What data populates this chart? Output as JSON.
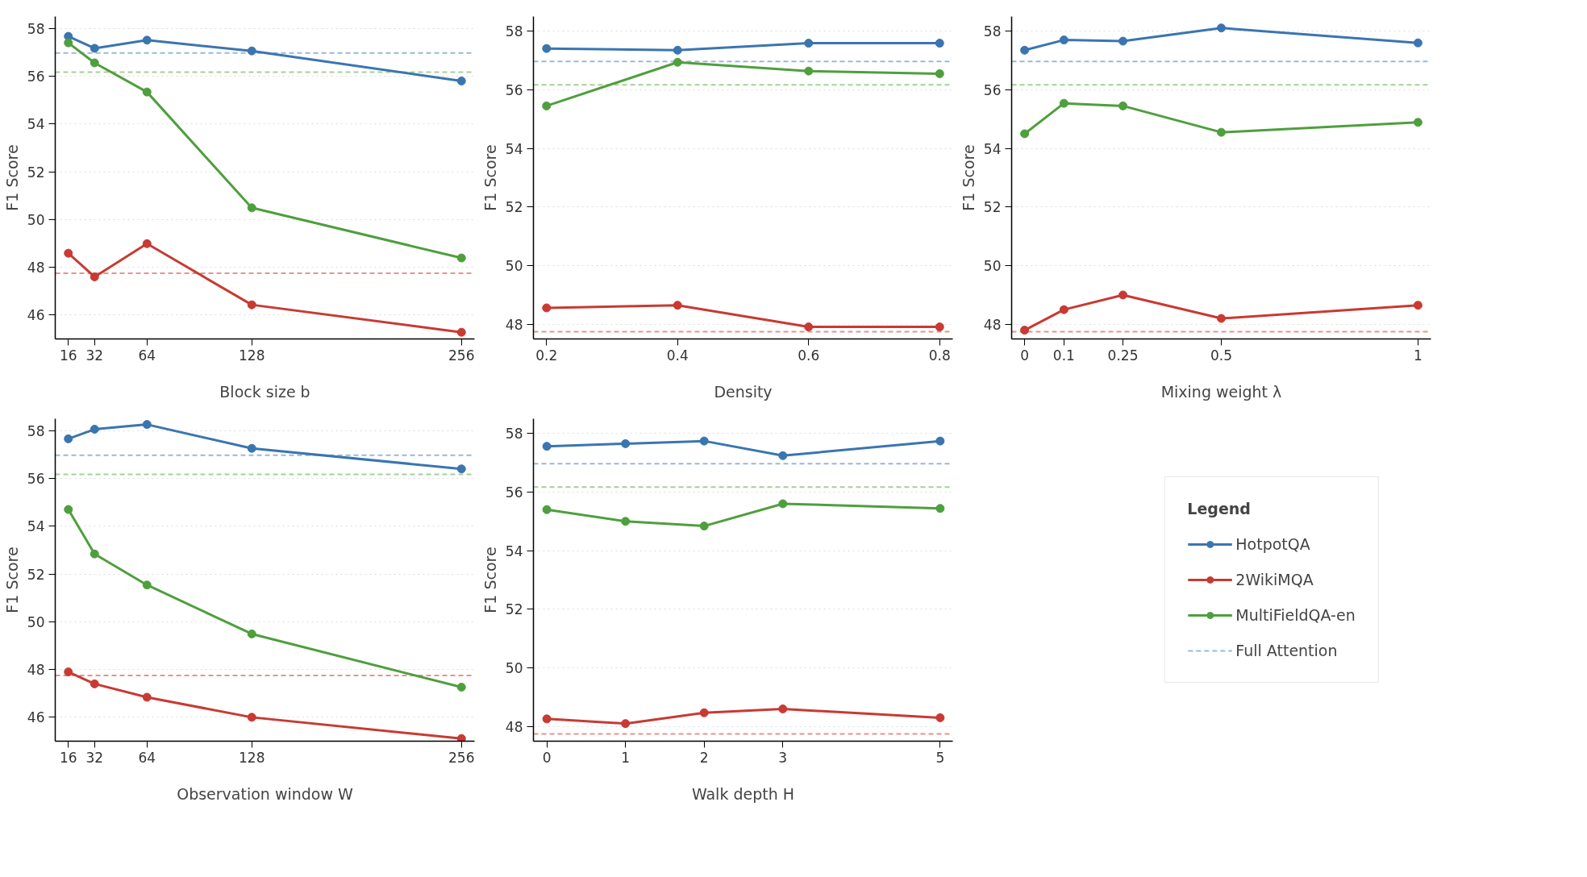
{
  "chart_data": [
    {
      "type": "line",
      "xlabel": "Block size b",
      "ylabel": "F1 Score",
      "x": [
        16,
        32,
        64,
        128,
        256
      ],
      "xlim": [
        8,
        264
      ],
      "xticks": [
        16,
        32,
        64,
        128,
        256
      ],
      "ylim": [
        45,
        58.5
      ],
      "yticks": [
        46,
        48,
        50,
        52,
        54,
        56,
        58
      ],
      "grid": "y",
      "marker": "circle",
      "line_style": "solid",
      "series": [
        {
          "color": "#3a75b0",
          "values": [
            57.67,
            57.17,
            57.51,
            57.06,
            55.8
          ]
        },
        {
          "color": "#c83a32",
          "values": [
            48.59,
            47.6,
            48.99,
            46.43,
            45.28
          ]
        },
        {
          "color": "#4e9f3d",
          "values": [
            57.4,
            56.56,
            55.34,
            50.49,
            48.39
          ]
        }
      ],
      "ref_lines": [
        {
          "axis": "y",
          "value": 56.97,
          "color": "#9bb8da",
          "line_style": "dashed"
        },
        {
          "axis": "y",
          "value": 47.75,
          "color": "#e49490",
          "line_style": "dashed"
        },
        {
          "axis": "y",
          "value": 56.17,
          "color": "#a6d096",
          "line_style": "dashed"
        }
      ]
    },
    {
      "type": "line",
      "xlabel": "Density",
      "ylabel": "F1 Score",
      "x": [
        0.2,
        0.4,
        0.6,
        0.8
      ],
      "xlim": [
        0.18,
        0.82
      ],
      "xticks": [
        0.2,
        0.4,
        0.6,
        0.8
      ],
      "ylim": [
        47.5,
        58.5
      ],
      "yticks": [
        48,
        50,
        52,
        54,
        56,
        58
      ],
      "grid": "y",
      "marker": "circle",
      "line_style": "solid",
      "series": [
        {
          "color": "#3a75b0",
          "values": [
            57.41,
            57.35,
            57.59,
            57.59
          ]
        },
        {
          "color": "#c83a32",
          "values": [
            48.56,
            48.65,
            47.91,
            47.91
          ]
        },
        {
          "color": "#4e9f3d",
          "values": [
            55.45,
            56.94,
            56.64,
            56.55
          ]
        }
      ],
      "ref_lines": [
        {
          "axis": "y",
          "value": 56.97,
          "color": "#9bb8da",
          "line_style": "dashed"
        },
        {
          "axis": "y",
          "value": 47.75,
          "color": "#e49490",
          "line_style": "dashed"
        },
        {
          "axis": "y",
          "value": 56.17,
          "color": "#a6d096",
          "line_style": "dashed"
        }
      ]
    },
    {
      "type": "line",
      "xlabel": "Mixing weight λ",
      "ylabel": "F1 Score",
      "x": [
        0,
        0.1,
        0.25,
        0.5,
        1
      ],
      "xlim": [
        -0.033,
        1.033
      ],
      "xticks": [
        0,
        0.1,
        0.25,
        0.5,
        1
      ],
      "ylim": [
        47.5,
        58.5
      ],
      "yticks": [
        48,
        50,
        52,
        54,
        56,
        58
      ],
      "grid": "y",
      "marker": "circle",
      "line_style": "solid",
      "series": [
        {
          "color": "#3a75b0",
          "values": [
            57.35,
            57.7,
            57.66,
            58.11,
            57.6
          ]
        },
        {
          "color": "#c83a32",
          "values": [
            47.8,
            48.5,
            49.0,
            48.2,
            48.65
          ]
        },
        {
          "color": "#4e9f3d",
          "values": [
            54.5,
            55.54,
            55.45,
            54.55,
            54.89
          ]
        }
      ],
      "ref_lines": [
        {
          "axis": "y",
          "value": 56.97,
          "color": "#9bb8da",
          "line_style": "dashed"
        },
        {
          "axis": "y",
          "value": 47.75,
          "color": "#e49490",
          "line_style": "dashed"
        },
        {
          "axis": "y",
          "value": 56.17,
          "color": "#a6d096",
          "line_style": "dashed"
        }
      ]
    },
    {
      "type": "line",
      "xlabel": "Observation window W",
      "ylabel": "F1 Score",
      "x": [
        16,
        32,
        64,
        128,
        256
      ],
      "xlim": [
        8,
        264
      ],
      "xticks": [
        16,
        32,
        64,
        128,
        256
      ],
      "ylim": [
        45,
        58.5
      ],
      "yticks": [
        46,
        48,
        50,
        52,
        54,
        56,
        58
      ],
      "grid": "y",
      "marker": "circle",
      "line_style": "solid",
      "series": [
        {
          "color": "#3a75b0",
          "values": [
            57.66,
            58.06,
            58.26,
            57.26,
            56.4
          ]
        },
        {
          "color": "#c83a32",
          "values": [
            47.9,
            47.4,
            46.84,
            46.0,
            45.11
          ]
        },
        {
          "color": "#4e9f3d",
          "values": [
            54.7,
            52.84,
            51.54,
            49.49,
            47.26
          ]
        }
      ],
      "ref_lines": [
        {
          "axis": "y",
          "value": 56.97,
          "color": "#9bb8da",
          "line_style": "dashed"
        },
        {
          "axis": "y",
          "value": 47.75,
          "color": "#e49490",
          "line_style": "dashed"
        },
        {
          "axis": "y",
          "value": 56.17,
          "color": "#a6d096",
          "line_style": "dashed"
        }
      ]
    },
    {
      "type": "line",
      "xlabel": "Walk depth H",
      "ylabel": "F1 Score",
      "x": [
        0,
        1,
        2,
        3,
        5
      ],
      "xlim": [
        -0.17,
        5.16
      ],
      "xticks": [
        0,
        1,
        2,
        3,
        5
      ],
      "ylim": [
        47.5,
        58.5
      ],
      "yticks": [
        48,
        50,
        52,
        54,
        56,
        58
      ],
      "grid": "y",
      "marker": "circle",
      "line_style": "solid",
      "legend": "right",
      "legend_title": "Legend",
      "series": [
        {
          "name": "HotpotQA",
          "color": "#3a75b0",
          "values": [
            57.56,
            57.65,
            57.74,
            57.24,
            57.74
          ]
        },
        {
          "name": "2WikiMQA",
          "color": "#c83a32",
          "values": [
            48.26,
            48.1,
            48.47,
            48.6,
            48.3
          ]
        },
        {
          "name": "MultiFieldQA-en",
          "color": "#4e9f3d",
          "values": [
            55.4,
            55.0,
            54.84,
            55.6,
            55.44
          ]
        }
      ],
      "ref_lines": [
        {
          "axis": "y",
          "value": 56.97,
          "color": "#9bb8da",
          "line_style": "dashed",
          "label": "Full Attention"
        },
        {
          "axis": "y",
          "value": 47.75,
          "color": "#e49490",
          "line_style": "dashed"
        },
        {
          "axis": "y",
          "value": 56.17,
          "color": "#a6d096",
          "line_style": "dashed"
        }
      ]
    }
  ]
}
